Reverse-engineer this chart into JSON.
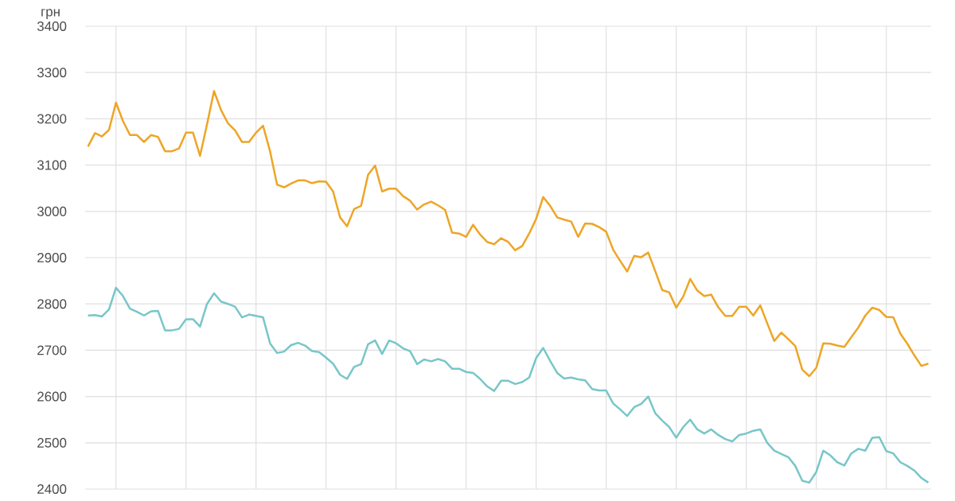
{
  "chart_data": {
    "type": "line",
    "ylabel": "грн",
    "categories": [
      null,
      null,
      null,
      null,
      null,
      null,
      null,
      null,
      null,
      null,
      null,
      null,
      null,
      null,
      null,
      null,
      null,
      null,
      null,
      null,
      null,
      null,
      null,
      null,
      null,
      null,
      null,
      null,
      null,
      null,
      null,
      null,
      null,
      null,
      null,
      null,
      null,
      null,
      null,
      null,
      null,
      null,
      null,
      null,
      null,
      null,
      null,
      null,
      null,
      null,
      null,
      null,
      null,
      null,
      null,
      null,
      null,
      null,
      null,
      null,
      null,
      null,
      null,
      null,
      null,
      null,
      null,
      null,
      null,
      null,
      null,
      null,
      null,
      null,
      null,
      null,
      null,
      null,
      null,
      null,
      null,
      null,
      null,
      null,
      null,
      null,
      null,
      null,
      null,
      null,
      null,
      null,
      null,
      null,
      null,
      null,
      null,
      null,
      null,
      null,
      null,
      null,
      null,
      null,
      null,
      null,
      null,
      null,
      null,
      null,
      null,
      null,
      null,
      null,
      null,
      null,
      null,
      null,
      null,
      null,
      null
    ],
    "ylim": [
      2400,
      3400
    ],
    "yticks": [
      2400,
      2500,
      2600,
      2700,
      2800,
      2900,
      3000,
      3100,
      3200,
      3300,
      3400
    ],
    "grid": true,
    "tick_labels": "y",
    "marker": "none",
    "line_style": "solid",
    "series": [
      {
        "color": "#eea526",
        "values": [
          3140,
          3169,
          3162,
          3176,
          3235,
          3195,
          3165,
          3165,
          3150,
          3165,
          3161,
          3130,
          3130,
          3136,
          3170,
          3170,
          3120,
          3188,
          3260,
          3219,
          3190,
          3175,
          3150,
          3150,
          3170,
          3185,
          3130,
          3058,
          3052,
          3060,
          3067,
          3067,
          3061,
          3065,
          3064,
          3043,
          2987,
          2968,
          3005,
          3012,
          3079,
          3099,
          3043,
          3049,
          3049,
          3033,
          3023,
          3004,
          3015,
          3021,
          3013,
          3003,
          2954,
          2952,
          2945,
          2971,
          2950,
          2934,
          2929,
          2942,
          2934,
          2916,
          2925,
          2952,
          2984,
          3031,
          3012,
          2987,
          2982,
          2978,
          2945,
          2974,
          2973,
          2966,
          2956,
          2917,
          2893,
          2870,
          2904,
          2901,
          2911,
          2871,
          2830,
          2825,
          2792,
          2816,
          2854,
          2829,
          2817,
          2820,
          2793,
          2774,
          2774,
          2794,
          2794,
          2775,
          2797,
          2758,
          2720,
          2738,
          2724,
          2709,
          2658,
          2644,
          2662,
          2715,
          2714,
          2710,
          2707,
          2728,
          2749,
          2775,
          2792,
          2787,
          2772,
          2771,
          2736,
          2714,
          2689,
          2666,
          2671
        ]
      },
      {
        "color": "#78c6c9",
        "values": [
          2775,
          2776,
          2773,
          2788,
          2835,
          2817,
          2790,
          2783,
          2775,
          2784,
          2785,
          2743,
          2743,
          2746,
          2767,
          2767,
          2751,
          2800,
          2823,
          2805,
          2800,
          2794,
          2771,
          2777,
          2774,
          2771,
          2715,
          2694,
          2697,
          2711,
          2716,
          2710,
          2698,
          2696,
          2684,
          2671,
          2647,
          2638,
          2664,
          2670,
          2713,
          2721,
          2692,
          2721,
          2715,
          2704,
          2698,
          2670,
          2680,
          2676,
          2681,
          2676,
          2660,
          2660,
          2653,
          2651,
          2638,
          2622,
          2612,
          2634,
          2634,
          2627,
          2631,
          2641,
          2683,
          2705,
          2677,
          2651,
          2639,
          2641,
          2637,
          2635,
          2616,
          2613,
          2613,
          2585,
          2572,
          2558,
          2577,
          2584,
          2600,
          2564,
          2548,
          2534,
          2511,
          2534,
          2550,
          2529,
          2520,
          2529,
          2517,
          2508,
          2503,
          2517,
          2520,
          2526,
          2529,
          2500,
          2483,
          2476,
          2469,
          2450,
          2418,
          2414,
          2437,
          2483,
          2473,
          2458,
          2451,
          2477,
          2487,
          2483,
          2511,
          2512,
          2482,
          2477,
          2458,
          2450,
          2440,
          2424,
          2414
        ]
      }
    ]
  }
}
